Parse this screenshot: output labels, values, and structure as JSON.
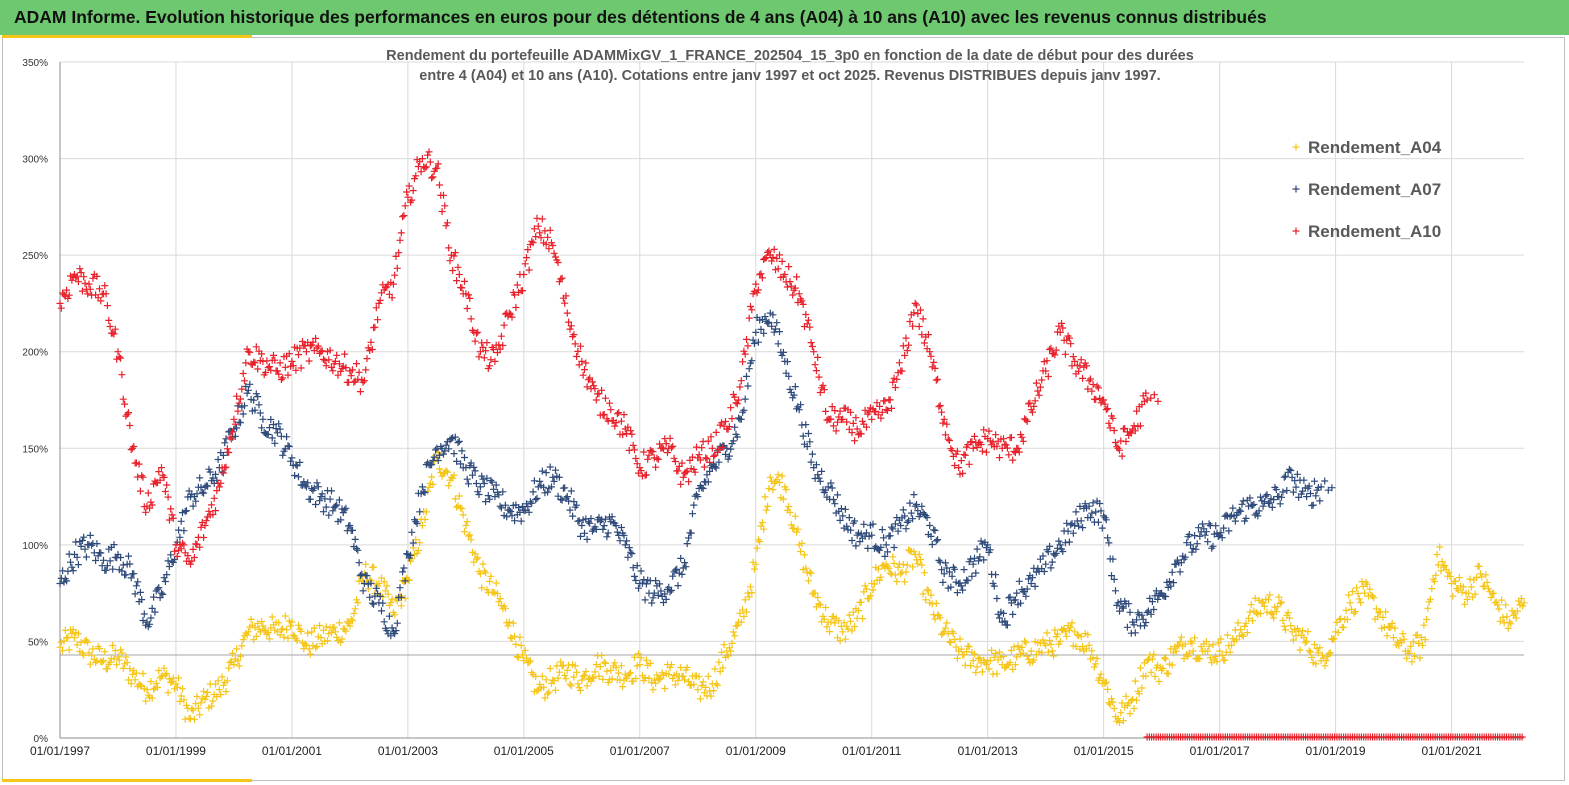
{
  "header": {
    "title": "ADAM Informe. Evolution historique des performances en euros pour des détentions de 4 ans (A04) à 10 ans (A10) avec les revenus connus distribués"
  },
  "colors": {
    "banner": "#6ec870",
    "accent_bar": "#f5c518",
    "A04": "#f5c518",
    "A07": "#2e4a7a",
    "A10": "#e8202a"
  },
  "chart_data": {
    "type": "scatter",
    "title_lines": [
      "Rendement du portefeuille ADAMMixGV_1_FRANCE_202504_15_3p0  en fonction de la date de début pour des durées",
      "entre 4 (A04) et 10 ans (A10). Cotations  entre janv 1997 et oct 2025. Revenus DISTRIBUES depuis janv 1997."
    ],
    "xlabel": "",
    "ylabel": "",
    "x_range": [
      "1997-01-01",
      "2022-04-01"
    ],
    "ylim": [
      0,
      350
    ],
    "y_ticks": [
      "0%",
      "50%",
      "100%",
      "150%",
      "200%",
      "250%",
      "300%",
      "350%"
    ],
    "y_tick_values": [
      0,
      50,
      100,
      150,
      200,
      250,
      300,
      350
    ],
    "x_ticks": [
      "01/01/1997",
      "01/01/1999",
      "01/01/2001",
      "01/01/2003",
      "01/01/2005",
      "01/01/2007",
      "01/01/2009",
      "01/01/2011",
      "01/01/2013",
      "01/01/2015",
      "01/01/2017",
      "01/01/2019",
      "01/01/2021"
    ],
    "x_tick_values": [
      1997,
      1999,
      2001,
      2003,
      2005,
      2007,
      2009,
      2011,
      2013,
      2015,
      2017,
      2019,
      2021
    ],
    "reference_line_y": 43,
    "grid": "horizontal and vertical",
    "legend_position": "top-right",
    "series": [
      {
        "name": "Rendement_A04",
        "x": [
          1997.0,
          1997.25,
          1997.5,
          1997.75,
          1998.0,
          1998.25,
          1998.5,
          1998.75,
          1999.0,
          1999.25,
          1999.5,
          1999.75,
          2000.0,
          2000.25,
          2000.5,
          2000.75,
          2001.0,
          2001.25,
          2001.5,
          2001.75,
          2002.0,
          2002.25,
          2002.5,
          2002.75,
          2003.0,
          2003.25,
          2003.5,
          2003.75,
          2004.0,
          2004.25,
          2004.5,
          2004.75,
          2005.0,
          2005.25,
          2005.5,
          2005.75,
          2006.0,
          2006.25,
          2006.5,
          2006.75,
          2007.0,
          2007.25,
          2007.5,
          2007.75,
          2008.0,
          2008.25,
          2008.5,
          2008.75,
          2009.0,
          2009.25,
          2009.5,
          2009.75,
          2010.0,
          2010.25,
          2010.5,
          2010.75,
          2011.0,
          2011.25,
          2011.5,
          2011.75,
          2012.0,
          2012.25,
          2012.5,
          2012.75,
          2013.0,
          2013.25,
          2013.5,
          2013.75,
          2014.0,
          2014.25,
          2014.5,
          2014.75,
          2015.0,
          2015.25,
          2015.5,
          2015.75,
          2016.0,
          2016.25,
          2016.5,
          2016.75,
          2017.0,
          2017.25,
          2017.5,
          2017.75,
          2018.0,
          2018.25,
          2018.5,
          2018.75,
          2019.0,
          2019.25,
          2019.5,
          2019.75,
          2020.0,
          2020.25,
          2020.5,
          2020.75,
          2021.0,
          2021.25,
          2021.5,
          2021.75,
          2022.0,
          2022.25
        ],
        "values": [
          47,
          52,
          44,
          40,
          42,
          33,
          25,
          32,
          28,
          10,
          20,
          25,
          38,
          55,
          58,
          55,
          60,
          48,
          52,
          55,
          58,
          85,
          80,
          65,
          82,
          110,
          145,
          135,
          110,
          85,
          75,
          60,
          40,
          25,
          30,
          35,
          30,
          38,
          35,
          33,
          38,
          30,
          33,
          32,
          25,
          28,
          45,
          60,
          90,
          135,
          130,
          100,
          75,
          60,
          55,
          62,
          80,
          90,
          85,
          95,
          70,
          55,
          45,
          40,
          40,
          38,
          42,
          45,
          48,
          50,
          55,
          48,
          30,
          10,
          20,
          40,
          35,
          45,
          50,
          45,
          45,
          50,
          62,
          70,
          68,
          55,
          50,
          40,
          55,
          70,
          75,
          65,
          52,
          45,
          48,
          95,
          80,
          75,
          85,
          70,
          60,
          70
        ]
      },
      {
        "name": "Rendement_A07",
        "x": [
          1997.0,
          1997.25,
          1997.5,
          1997.75,
          1998.0,
          1998.25,
          1998.5,
          1998.75,
          1999.0,
          1999.25,
          1999.5,
          1999.75,
          2000.0,
          2000.25,
          2000.5,
          2000.75,
          2001.0,
          2001.25,
          2001.5,
          2001.75,
          2002.0,
          2002.25,
          2002.5,
          2002.75,
          2003.0,
          2003.25,
          2003.5,
          2003.75,
          2004.0,
          2004.25,
          2004.5,
          2004.75,
          2005.0,
          2005.25,
          2005.5,
          2005.75,
          2006.0,
          2006.25,
          2006.5,
          2006.75,
          2007.0,
          2007.25,
          2007.5,
          2007.75,
          2008.0,
          2008.25,
          2008.5,
          2008.75,
          2009.0,
          2009.25,
          2009.5,
          2009.75,
          2010.0,
          2010.25,
          2010.5,
          2010.75,
          2011.0,
          2011.25,
          2011.5,
          2011.75,
          2012.0,
          2012.25,
          2012.5,
          2012.75,
          2013.0,
          2013.25,
          2013.5,
          2013.75,
          2014.0,
          2014.25,
          2014.5,
          2014.75,
          2015.0,
          2015.25,
          2015.5,
          2015.75,
          2016.0,
          2016.25,
          2016.5,
          2016.75,
          2017.0,
          2017.25,
          2017.5,
          2017.75,
          2018.0,
          2018.25,
          2018.5,
          2018.75
        ],
        "values": [
          80,
          95,
          100,
          92,
          95,
          85,
          60,
          75,
          100,
          125,
          130,
          140,
          160,
          180,
          165,
          158,
          145,
          130,
          125,
          120,
          110,
          80,
          70,
          55,
          95,
          130,
          150,
          155,
          140,
          130,
          125,
          118,
          118,
          130,
          135,
          125,
          110,
          108,
          112,
          100,
          80,
          75,
          78,
          88,
          125,
          140,
          150,
          165,
          210,
          220,
          195,
          170,
          140,
          130,
          115,
          105,
          105,
          100,
          110,
          120,
          110,
          85,
          80,
          90,
          100,
          60,
          75,
          80,
          90,
          100,
          110,
          120,
          115,
          70,
          60,
          65,
          75,
          90,
          100,
          105,
          105,
          115,
          120,
          120,
          125,
          135,
          125,
          130
        ]
      },
      {
        "name": "Rendement_A10",
        "x": [
          1997.0,
          1997.25,
          1997.5,
          1997.75,
          1998.0,
          1998.25,
          1998.5,
          1998.75,
          1999.0,
          1999.25,
          1999.5,
          1999.75,
          2000.0,
          2000.25,
          2000.5,
          2000.75,
          2001.0,
          2001.25,
          2001.5,
          2001.75,
          2002.0,
          2002.25,
          2002.5,
          2002.75,
          2003.0,
          2003.25,
          2003.5,
          2003.75,
          2004.0,
          2004.25,
          2004.5,
          2004.75,
          2005.0,
          2005.25,
          2005.5,
          2005.75,
          2006.0,
          2006.25,
          2006.5,
          2006.75,
          2007.0,
          2007.25,
          2007.5,
          2007.75,
          2008.0,
          2008.25,
          2008.5,
          2008.75,
          2009.0,
          2009.25,
          2009.5,
          2009.75,
          2010.0,
          2010.25,
          2010.5,
          2010.75,
          2011.0,
          2011.25,
          2011.5,
          2011.75,
          2012.0,
          2012.25,
          2012.5,
          2012.75,
          2013.0,
          2013.25,
          2013.5,
          2013.75,
          2014.0,
          2014.25,
          2014.5,
          2014.75,
          2015.0,
          2015.25,
          2015.5,
          2015.75
        ],
        "values": [
          225,
          240,
          235,
          230,
          200,
          150,
          120,
          140,
          100,
          90,
          110,
          130,
          165,
          200,
          195,
          190,
          195,
          200,
          200,
          195,
          190,
          185,
          225,
          235,
          280,
          300,
          295,
          250,
          230,
          200,
          195,
          220,
          240,
          265,
          255,
          220,
          195,
          175,
          170,
          160,
          140,
          145,
          150,
          135,
          145,
          150,
          160,
          185,
          235,
          250,
          240,
          230,
          200,
          165,
          165,
          160,
          165,
          170,
          190,
          225,
          200,
          165,
          140,
          150,
          155,
          150,
          150,
          170,
          190,
          210,
          195,
          185,
          175,
          150,
          160,
          175
        ]
      },
      {
        "name": "",
        "note_kind": "flat_zero_strip",
        "x_start": 2015.75,
        "x_end": 2022.25,
        "value": 0
      }
    ]
  }
}
